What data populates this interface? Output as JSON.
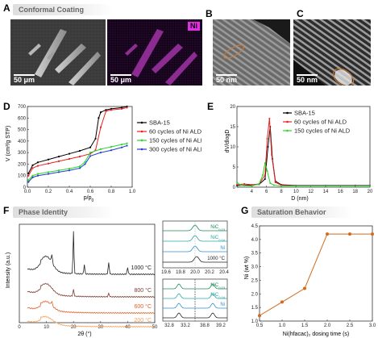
{
  "panel_letters": {
    "a": "A",
    "b": "B",
    "c": "C",
    "d": "D",
    "e": "E",
    "f": "F",
    "g": "G"
  },
  "banners": {
    "a": "Conformal Coating",
    "f": "Phase Identity",
    "g": "Saturation Behavior"
  },
  "micrographs": {
    "a_left_scale": "50 μm",
    "a_right_scale": "50 μm",
    "a_right_element": "Ni",
    "b_scale": "50 nm",
    "c_scale": "50 nm"
  },
  "colors": {
    "sba15": "#000000",
    "ni60": "#e8211d",
    "ni150": "#2bd62b",
    "ni300": "#1f3fcc",
    "temp1000": "#222222",
    "temp800": "#7a3b2e",
    "temp600": "#e0622a",
    "temp200": "#f2a25c",
    "sat": "#d2691e",
    "nic1": "#1f8a5a",
    "nic2": "#2aa6a6",
    "ni_ref": "#2f8fd0"
  },
  "chart_data": [
    {
      "id": "D",
      "type": "line",
      "xlabel": "p/p0",
      "ylabel": "V (cm³/g STP)",
      "xlim": [
        0,
        1.0
      ],
      "ylim": [
        0,
        700
      ],
      "xticks": [
        "0.0",
        "0.2",
        "0.4",
        "0.6",
        "0.8",
        "1.0"
      ],
      "yticks": [
        "0",
        "100",
        "200",
        "300",
        "400",
        "500",
        "600",
        "700"
      ],
      "legend": "right",
      "series": [
        {
          "name": "SBA-15",
          "key": "sba15",
          "x": [
            0.01,
            0.05,
            0.1,
            0.2,
            0.3,
            0.4,
            0.5,
            0.6,
            0.65,
            0.68,
            0.7,
            0.75,
            0.8,
            0.9,
            0.95
          ],
          "y": [
            120,
            190,
            215,
            240,
            265,
            290,
            315,
            345,
            420,
            600,
            650,
            670,
            680,
            690,
            700
          ]
        },
        {
          "name": "60 cycles of Ni ALD",
          "key": "ni60",
          "x": [
            0.01,
            0.05,
            0.1,
            0.2,
            0.3,
            0.4,
            0.5,
            0.6,
            0.65,
            0.7,
            0.75,
            0.8,
            0.9,
            0.95
          ],
          "y": [
            100,
            165,
            185,
            205,
            225,
            245,
            265,
            290,
            320,
            520,
            660,
            670,
            680,
            690
          ]
        },
        {
          "name": "150 cycles of Ni ALD",
          "key": "ni150",
          "x": [
            0.01,
            0.05,
            0.1,
            0.2,
            0.3,
            0.4,
            0.5,
            0.55,
            0.6,
            0.7,
            0.8,
            0.9,
            0.95
          ],
          "y": [
            60,
            100,
            115,
            130,
            145,
            160,
            180,
            220,
            300,
            330,
            350,
            370,
            380
          ]
        },
        {
          "name": "300 cycles of Ni ALD",
          "key": "ni300",
          "x": [
            0.01,
            0.05,
            0.1,
            0.2,
            0.3,
            0.4,
            0.5,
            0.55,
            0.6,
            0.7,
            0.8,
            0.9,
            0.95
          ],
          "y": [
            45,
            85,
            100,
            115,
            130,
            145,
            165,
            200,
            270,
            300,
            320,
            345,
            360
          ]
        }
      ]
    },
    {
      "id": "E",
      "type": "line",
      "xlabel": "D (nm)",
      "ylabel": "dV/dlogD",
      "xlim": [
        2,
        20
      ],
      "ylim": [
        0,
        20
      ],
      "xticks": [
        "4",
        "6",
        "8",
        "10",
        "12",
        "14",
        "16",
        "18",
        "20"
      ],
      "yticks": [
        "0",
        "5",
        "10",
        "15",
        "20"
      ],
      "legend": "top-right",
      "series": [
        {
          "name": "SBA-15",
          "key": "sba15",
          "x": [
            2,
            3,
            4,
            5,
            5.8,
            6.2,
            6.5,
            6.8,
            7.2,
            8,
            10,
            14,
            18,
            20
          ],
          "y": [
            0.4,
            0.5,
            0.5,
            0.7,
            2,
            10,
            15,
            7,
            1.5,
            0.6,
            0.4,
            0.4,
            0.4,
            0.4
          ]
        },
        {
          "name": "60 cycles of Ni ALD",
          "key": "ni60",
          "x": [
            2,
            3,
            4,
            5,
            5.8,
            6.1,
            6.4,
            6.7,
            7.2,
            8,
            10,
            14,
            18,
            20
          ],
          "y": [
            0.6,
            0.8,
            0.6,
            0.8,
            3,
            12,
            17,
            8,
            1.2,
            0.5,
            0.3,
            0.3,
            0.3,
            0.3
          ]
        },
        {
          "name": "150 cycles of Ni ALD",
          "key": "ni150",
          "x": [
            2,
            2.5,
            3,
            4,
            5,
            5.5,
            5.8,
            6.1,
            6.5,
            7,
            8,
            10,
            14,
            20
          ],
          "y": [
            1.2,
            0.5,
            0.4,
            0.3,
            0.8,
            3,
            6,
            4,
            1,
            0.5,
            0.3,
            0.3,
            0.3,
            0.3
          ]
        }
      ]
    },
    {
      "id": "F-main",
      "type": "line",
      "xlabel": "2θ (°)",
      "ylabel": "Intensity (a.u.)",
      "xlim": [
        0,
        50
      ],
      "xticks": [
        "0",
        "10",
        "20",
        "30",
        "40",
        "50"
      ],
      "annotations": [
        "1000 °C",
        "800 °C",
        "600 °C",
        "200 °C"
      ]
    },
    {
      "id": "F-inset-top",
      "type": "line",
      "xlim": [
        19.6,
        20.4
      ],
      "xticks": [
        "19.6",
        "19.8",
        "20.0",
        "20.2",
        "20.4"
      ],
      "labels": [
        "NiC",
        "NiC",
        "Ni",
        "1000 °C"
      ],
      "subscripts": [
        "0.03",
        "0.04",
        "",
        ""
      ]
    },
    {
      "id": "F-inset-bottom",
      "type": "line",
      "xticks": [
        "32.8",
        "33.2",
        "38.8",
        "39.2"
      ],
      "labels": [
        "NiC",
        "NiC",
        "Ni"
      ],
      "subscripts": [
        "0.03",
        "0.04",
        ""
      ]
    },
    {
      "id": "G",
      "type": "line",
      "xlabel": "Ni(hfacac)₂ dosing time (s)",
      "ylabel": "Ni (wt %)",
      "xlim": [
        0.5,
        3.0
      ],
      "ylim": [
        1.0,
        4.5
      ],
      "xticks": [
        "0.5",
        "1.0",
        "1.5",
        "2.0",
        "2.5",
        "3.0"
      ],
      "yticks": [
        "1.0",
        "1.5",
        "2.0",
        "2.5",
        "3.0",
        "3.5",
        "4.0",
        "4.5"
      ],
      "series": [
        {
          "key": "sat",
          "x": [
            0.5,
            1.0,
            1.5,
            2.0,
            2.5,
            3.0
          ],
          "y": [
            1.2,
            1.7,
            2.2,
            4.2,
            4.2,
            4.2
          ]
        }
      ]
    }
  ]
}
